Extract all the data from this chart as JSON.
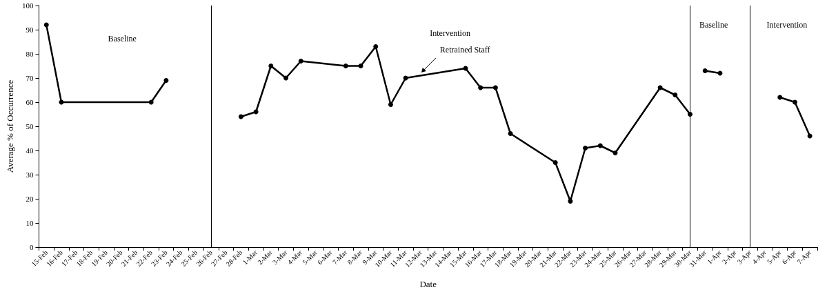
{
  "chart_data": {
    "type": "line",
    "xlabel": "Date",
    "ylabel": "Average % of Occurrence",
    "categories": [
      "15-Feb",
      "16-Feb",
      "17-Feb",
      "18-Feb",
      "19-Feb",
      "20-Feb",
      "21-Feb",
      "22-Feb",
      "23-Feb",
      "24-Feb",
      "25-Feb",
      "26-Feb",
      "27-Feb",
      "28-Feb",
      "1-Mar",
      "2-Mar",
      "3-Mar",
      "4-Mar",
      "5-Mar",
      "6-Mar",
      "7-Mar",
      "8-Mar",
      "9-Mar",
      "10-Mar",
      "11-Mar",
      "12-Mar",
      "13-Mar",
      "14-Mar",
      "15-Mar",
      "16-Mar",
      "17-Mar",
      "18-Mar",
      "19-Mar",
      "20-Mar",
      "21-Mar",
      "22-Mar",
      "23-Mar",
      "24-Mar",
      "25-Mar",
      "26-Mar",
      "27-Mar",
      "28-Mar",
      "29-Mar",
      "30-Mar",
      "31-Mar",
      "1-Apr",
      "2-Apr",
      "3-Apr",
      "4-Apr",
      "5-Apr",
      "6-Apr",
      "7-Apr"
    ],
    "series": [
      {
        "color": "#000000",
        "values": [
          92,
          60,
          null,
          null,
          null,
          null,
          null,
          60,
          69,
          null,
          null,
          null,
          null,
          null,
          null,
          null,
          null,
          null,
          null,
          null,
          null,
          null,
          null,
          null,
          null,
          null,
          null,
          null,
          null,
          null,
          null,
          null,
          null,
          null,
          null,
          null,
          null,
          null,
          null,
          null,
          null,
          null,
          null,
          null,
          null,
          null,
          null,
          null,
          null,
          null,
          null,
          null
        ]
      },
      {
        "color": "#000000",
        "values": [
          null,
          null,
          null,
          null,
          null,
          null,
          null,
          null,
          null,
          null,
          null,
          null,
          null,
          54,
          56,
          75,
          70,
          77,
          null,
          null,
          75,
          75,
          83,
          59,
          70,
          null,
          null,
          null,
          74,
          66,
          66,
          47,
          null,
          null,
          35,
          19,
          41,
          42,
          39,
          null,
          null,
          66,
          63,
          55,
          null,
          null,
          null,
          null,
          null,
          null,
          null,
          null
        ]
      },
      {
        "color": "#000000",
        "values": [
          null,
          null,
          null,
          null,
          null,
          null,
          null,
          null,
          null,
          null,
          null,
          null,
          null,
          null,
          null,
          null,
          null,
          null,
          null,
          null,
          null,
          null,
          null,
          null,
          null,
          null,
          null,
          null,
          null,
          null,
          null,
          null,
          null,
          null,
          null,
          null,
          null,
          null,
          null,
          null,
          null,
          null,
          null,
          null,
          73,
          72,
          null,
          null,
          null,
          null,
          null,
          null
        ]
      },
      {
        "color": "#000000",
        "values": [
          null,
          null,
          null,
          null,
          null,
          null,
          null,
          null,
          null,
          null,
          null,
          null,
          null,
          null,
          null,
          null,
          null,
          null,
          null,
          null,
          null,
          null,
          null,
          null,
          null,
          null,
          null,
          null,
          null,
          null,
          null,
          null,
          null,
          null,
          null,
          null,
          null,
          null,
          null,
          null,
          null,
          null,
          null,
          null,
          null,
          null,
          null,
          null,
          null,
          62,
          60,
          46
        ]
      }
    ],
    "ylim": [
      0,
      100
    ],
    "yticks": [
      0,
      10,
      20,
      30,
      40,
      50,
      60,
      70,
      80,
      90,
      100
    ],
    "grid": false,
    "marker": "circle",
    "line_style": "solid",
    "ref_lines": [
      {
        "axis": "x",
        "value": "26-Feb",
        "color": "#000000"
      },
      {
        "axis": "x",
        "value": "30-Mar",
        "color": "#000000"
      },
      {
        "axis": "x",
        "value": "3-Apr",
        "color": "#000000"
      }
    ],
    "annotations": [
      "Baseline",
      "Intervention",
      "Baseline",
      "Intervention",
      {
        "text": "Retrained Staff",
        "x": "12-Mar",
        "y": 72
      }
    ]
  }
}
